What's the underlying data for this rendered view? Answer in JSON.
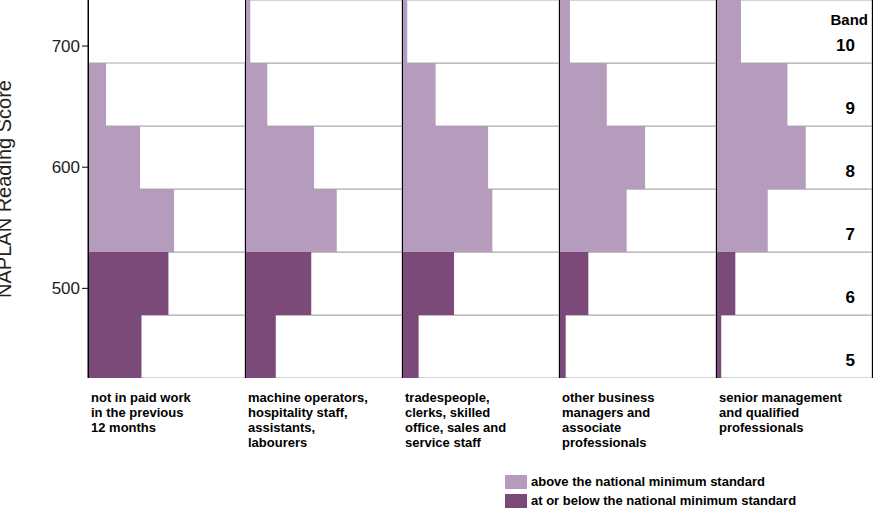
{
  "chart_data": {
    "type": "bar",
    "orientation": "horizontal",
    "y_label": "NAPLAN Reading Score",
    "ylim": [
      426,
      738
    ],
    "yticks": [
      500,
      600,
      700
    ],
    "xlim": [
      0,
      55
    ],
    "tick_labels": "y",
    "category_label": "Band",
    "categories": [
      5,
      6,
      7,
      8,
      9,
      10
    ],
    "legend": "bottom right",
    "panels": [
      {
        "title": [
          "not in paid work",
          "in the previous",
          "12 months"
        ],
        "series": [
          {
            "name": "above the national minimum standard",
            "color": "#b59cbd",
            "values": [
              null,
              null,
              30,
              18,
              6,
              0
            ]
          },
          {
            "name": "at or below the national minimum standard",
            "color": "#7b4a78",
            "values": [
              18.5,
              28,
              null,
              null,
              null,
              null
            ]
          }
        ]
      },
      {
        "title": [
          "machine operators,",
          "hospitality staff,",
          "assistants,",
          "labourers"
        ],
        "series": [
          {
            "name": "above the national minimum standard",
            "color": "#b59cbd",
            "values": [
              null,
              null,
              32,
              24,
              7.5,
              1.5
            ]
          },
          {
            "name": "at or below the national minimum standard",
            "color": "#7b4a78",
            "values": [
              10.5,
              23,
              null,
              null,
              null,
              null
            ]
          }
        ]
      },
      {
        "title": [
          "tradespeople,",
          "clerks, skilled",
          "office, sales and",
          "service staff"
        ],
        "series": [
          {
            "name": "above the national minimum standard",
            "color": "#b59cbd",
            "values": [
              null,
              null,
              31.5,
              30,
              11.5,
              1.5
            ]
          },
          {
            "name": "at or below the national minimum standard",
            "color": "#7b4a78",
            "values": [
              5.5,
              18,
              null,
              null,
              null,
              null
            ]
          }
        ]
      },
      {
        "title": [
          "other business",
          "managers and",
          "associate",
          "professionals"
        ],
        "series": [
          {
            "name": "above the national minimum standard",
            "color": "#b59cbd",
            "values": [
              null,
              null,
              23.5,
              30,
              16.5,
              3.5
            ]
          },
          {
            "name": "at or below the national minimum standard",
            "color": "#7b4a78",
            "values": [
              2,
              10,
              null,
              null,
              null,
              null
            ]
          }
        ]
      },
      {
        "title": [
          "senior management",
          "and qualified",
          "professionals"
        ],
        "series": [
          {
            "name": "above the national minimum standard",
            "color": "#b59cbd",
            "values": [
              null,
              null,
              18,
              31.5,
              25,
              8.5
            ]
          },
          {
            "name": "at or below the national minimum standard",
            "color": "#7b4a78",
            "values": [
              1.5,
              6.5,
              null,
              null,
              null,
              null
            ]
          }
        ]
      }
    ]
  }
}
